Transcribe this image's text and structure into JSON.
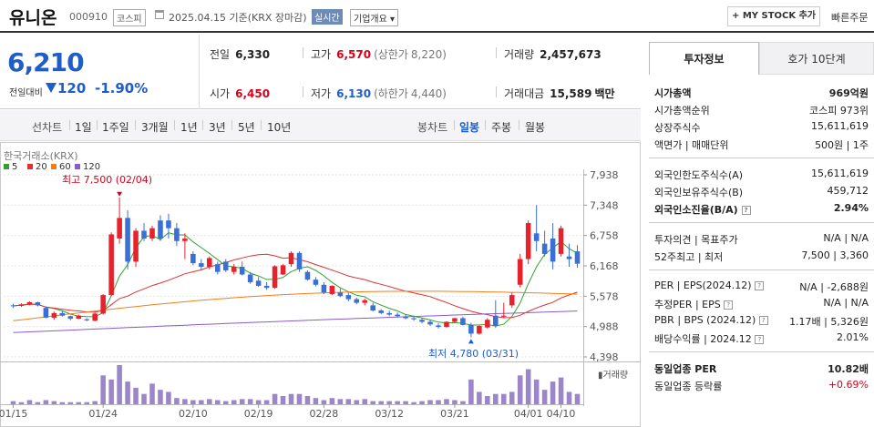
{
  "header": {
    "name": "유니온",
    "code": "000910",
    "market": "코스피",
    "date_text": "2025.04.15  기준(KRX 장마감)",
    "realtime": "실시간",
    "overview": "기업개요 ▾",
    "my_stock": "+ MY STOCK 추가",
    "quick_order": "빠른주문"
  },
  "price": {
    "current": "6,210",
    "compare_label": "전일대비",
    "change": "120",
    "change_pct": "-1.90%",
    "prev_close_label": "전일",
    "prev_close": "6,330",
    "high_label": "고가",
    "high": "6,570",
    "upper_limit_label": "(상한가",
    "upper_limit": "8,220)",
    "volume_label": "거래량",
    "volume": "2,457,673",
    "open_label": "시가",
    "open": "6,450",
    "low_label": "저가",
    "low": "6,130",
    "lower_limit_label": "(하한가",
    "lower_limit": "4,440)",
    "amount_label": "거래대금",
    "amount": "15,589",
    "amount_unit": "백만"
  },
  "toolbar": {
    "line_chart": "선차트",
    "periods": [
      "1일",
      "1주일",
      "3개월",
      "1년",
      "3년",
      "5년",
      "10년"
    ],
    "candle_chart": "봉차트",
    "candle_periods": [
      "일봉",
      "주봉",
      "월봉"
    ],
    "active_candle": "일봉"
  },
  "chart_data": {
    "type": "candlestick",
    "source_label": "한국거래소(KRX)",
    "legend": [
      {
        "name": "5",
        "color": "#2fa02f"
      },
      {
        "name": "20",
        "color": "#e03030"
      },
      {
        "name": "60",
        "color": "#f07f1a"
      },
      {
        "name": "120",
        "color": "#8a5cc9"
      }
    ],
    "y_ticks": [
      "7,938",
      "7,348",
      "6,758",
      "6,168",
      "5,578",
      "4,988",
      "4,398"
    ],
    "ylim": [
      4398,
      7938
    ],
    "x_ticks": [
      "01/15",
      "01/24",
      "02/10",
      "02/19",
      "02/28",
      "03/12",
      "03/21",
      "04/01",
      "04/10"
    ],
    "high_annotation": "최고 7,500 (02/04)",
    "low_annotation": "최저 4,780 (03/31)",
    "volume_label": "거래량",
    "candles": [
      [
        5400,
        5430,
        5350,
        5390
      ],
      [
        5390,
        5440,
        5370,
        5420
      ],
      [
        5420,
        5480,
        5400,
        5460
      ],
      [
        5460,
        5470,
        5380,
        5400
      ],
      [
        5350,
        5380,
        5150,
        5160
      ],
      [
        5160,
        5280,
        5120,
        5250
      ],
      [
        5250,
        5290,
        5180,
        5200
      ],
      [
        5190,
        5200,
        5110,
        5140
      ],
      [
        5140,
        5220,
        5130,
        5200
      ],
      [
        5130,
        5150,
        5090,
        5110
      ],
      [
        5100,
        5260,
        5090,
        5240
      ],
      [
        5240,
        5620,
        5220,
        5600
      ],
      [
        5600,
        6820,
        5580,
        6780
      ],
      [
        6700,
        7500,
        6600,
        7100
      ],
      [
        7100,
        7250,
        6100,
        6250
      ],
      [
        6250,
        6900,
        6150,
        6850
      ],
      [
        6850,
        7000,
        6650,
        6700
      ],
      [
        6700,
        6950,
        6650,
        6900
      ],
      [
        7050,
        7150,
        6650,
        6700
      ],
      [
        7050,
        7180,
        6700,
        6900
      ],
      [
        6900,
        7000,
        6550,
        6650
      ],
      [
        6650,
        6800,
        6300,
        6700
      ],
      [
        6400,
        6450,
        6180,
        6220
      ],
      [
        6220,
        6300,
        6100,
        6150
      ],
      [
        6150,
        6350,
        6100,
        6320
      ],
      [
        6200,
        6250,
        6000,
        6050
      ],
      [
        6250,
        6300,
        6050,
        6080
      ],
      [
        6050,
        6200,
        6000,
        6150
      ],
      [
        6150,
        6250,
        5980,
        6000
      ],
      [
        6000,
        6050,
        5820,
        5850
      ],
      [
        5880,
        5950,
        5760,
        5780
      ],
      [
        5780,
        5850,
        5700,
        5740
      ],
      [
        5740,
        6180,
        5720,
        6160
      ],
      [
        6000,
        6200,
        5990,
        6180
      ],
      [
        6200,
        6450,
        6150,
        6420
      ],
      [
        6420,
        6450,
        6050,
        6100
      ],
      [
        6050,
        6080,
        5880,
        5900
      ],
      [
        5900,
        5950,
        5770,
        5800
      ],
      [
        5800,
        5850,
        5620,
        5650
      ],
      [
        5620,
        5790,
        5600,
        5780
      ],
      [
        5650,
        5730,
        5560,
        5580
      ],
      [
        5600,
        5650,
        5480,
        5520
      ],
      [
        5520,
        5550,
        5420,
        5450
      ],
      [
        5450,
        5530,
        5400,
        5500
      ],
      [
        5400,
        5450,
        5280,
        5300
      ],
      [
        5300,
        5330,
        5230,
        5250
      ],
      [
        5250,
        5300,
        5190,
        5220
      ],
      [
        5220,
        5260,
        5160,
        5190
      ],
      [
        5180,
        5220,
        5130,
        5150
      ],
      [
        5150,
        5200,
        5100,
        5130
      ],
      [
        5120,
        5150,
        5050,
        5080
      ],
      [
        5080,
        5120,
        5000,
        5030
      ],
      [
        5010,
        5050,
        4950,
        4980
      ],
      [
        4980,
        5090,
        4970,
        5080
      ],
      [
        5080,
        5160,
        5060,
        5150
      ],
      [
        5150,
        5180,
        5010,
        5020
      ],
      [
        5020,
        5060,
        4780,
        4850
      ],
      [
        4850,
        5010,
        4830,
        5000
      ],
      [
        4970,
        5150,
        4950,
        5120
      ],
      [
        5200,
        5500,
        4960,
        5000
      ],
      [
        5180,
        5450,
        5150,
        5200
      ],
      [
        5400,
        5650,
        5350,
        5600
      ],
      [
        5800,
        6400,
        5750,
        6300
      ],
      [
        6300,
        7050,
        6200,
        7000
      ],
      [
        6800,
        7350,
        6450,
        6650
      ],
      [
        6600,
        6850,
        6350,
        6400
      ],
      [
        6700,
        7000,
        6100,
        6250
      ],
      [
        6400,
        6950,
        6350,
        6900
      ],
      [
        6350,
        6600,
        6150,
        6300
      ],
      [
        6450,
        6570,
        6130,
        6210
      ]
    ],
    "volumes": [
      3,
      2,
      4,
      2,
      4,
      3,
      2,
      2,
      2,
      2,
      3,
      28,
      24,
      38,
      22,
      16,
      10,
      20,
      14,
      12,
      6,
      5,
      4,
      4,
      5,
      4,
      3,
      4,
      5,
      5,
      4,
      4,
      10,
      8,
      10,
      10,
      8,
      6,
      4,
      6,
      5,
      5,
      4,
      5,
      3,
      3,
      3,
      3,
      3,
      2,
      3,
      4,
      4,
      5,
      4,
      3,
      24,
      12,
      8,
      10,
      10,
      12,
      28,
      34,
      24,
      14,
      22,
      26,
      12,
      10
    ]
  },
  "right_panel": {
    "tab_active": "투자정보",
    "tab_other": "호가 10단계",
    "market_cap_label": "시가총액",
    "market_cap": "969억원",
    "rank_label": "시가총액순위",
    "rank": "코스피  973위",
    "shares_label": "상장주식수",
    "shares": "15,611,619",
    "par_label": "액면가 | 매매단위",
    "par": "500원 | 1주",
    "foreign_limit_label": "외국인한도주식수(A)",
    "foreign_limit": "15,611,619",
    "foreign_hold_label": "외국인보유주식수(B)",
    "foreign_hold": "459,712",
    "foreign_ratio_label": "외국인소진율(B/A)",
    "foreign_ratio": "2.94%",
    "opinion_label": "투자의견 | 목표주가",
    "opinion": "N/A | N/A",
    "w52_label": "52주최고 | 최저",
    "w52": "7,500 | 3,360",
    "per_label": "PER | EPS(2024.12)",
    "per": "N/A | -2,688원",
    "est_per_label": "추정PER | EPS",
    "est_per": "N/A | N/A",
    "pbr_label": "PBR | BPS (2024.12)",
    "pbr": "1.17배 | 5,326원",
    "div_label": "배당수익률 | 2024.12",
    "div": "2.01%",
    "sector_per_label": "동일업종 PER",
    "sector_per": "10.82배",
    "sector_rate_label": "동일업종 등락률",
    "sector_rate": "+0.69%"
  }
}
